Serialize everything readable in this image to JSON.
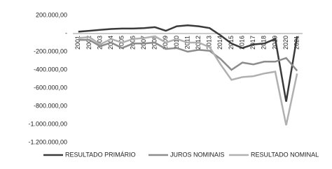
{
  "chart_data": {
    "type": "line",
    "categories": [
      "2001",
      "2002",
      "2003",
      "2004",
      "2005",
      "2006",
      "2007",
      "2008",
      "2009",
      "2010",
      "2011",
      "2012",
      "2013",
      "2014",
      "2015",
      "2016",
      "2017",
      "2018",
      "2019",
      "2020",
      "2021"
    ],
    "series": [
      {
        "name": "RESULTADO PRIMÁRIO",
        "color": "#3a3a3a",
        "values": [
          20000,
          30000,
          40000,
          50000,
          55000,
          55000,
          60000,
          70000,
          30000,
          80000,
          90000,
          80000,
          60000,
          -20000,
          -110000,
          -160000,
          -120000,
          -110000,
          -60000,
          -750000,
          -30000
        ]
      },
      {
        "name": "JUROS NOMINAIS",
        "color": "#8c8c8c",
        "values": [
          -70000,
          -70000,
          -140000,
          -100000,
          -160000,
          -110000,
          -110000,
          -100000,
          -170000,
          -160000,
          -200000,
          -180000,
          -190000,
          -280000,
          -400000,
          -320000,
          -340000,
          -310000,
          -310000,
          -270000,
          -410000
        ]
      },
      {
        "name": "RESULTADO NOMINAL",
        "color": "#b0b0b0",
        "values": [
          -50000,
          -40000,
          -120000,
          -60000,
          -100000,
          -60000,
          -50000,
          -30000,
          -100000,
          -60000,
          -100000,
          -100000,
          -150000,
          -340000,
          -510000,
          -480000,
          -470000,
          -440000,
          -420000,
          -1010000,
          -440000
        ]
      }
    ],
    "ylim": [
      -1200000,
      200000
    ],
    "yticks": [
      {
        "value": 200000,
        "label": "200.000,00"
      },
      {
        "value": 0,
        "label": "-"
      },
      {
        "value": -200000,
        "label": "-200.000,00"
      },
      {
        "value": -400000,
        "label": "-400.000,00"
      },
      {
        "value": -600000,
        "label": "-600.000,00"
      },
      {
        "value": -800000,
        "label": "-800.000,00"
      },
      {
        "value": -1000000,
        "label": "-1.000.000,00"
      },
      {
        "value": -1200000,
        "label": "-1.200.000,00"
      }
    ],
    "grid": false,
    "legend": "bottom"
  }
}
